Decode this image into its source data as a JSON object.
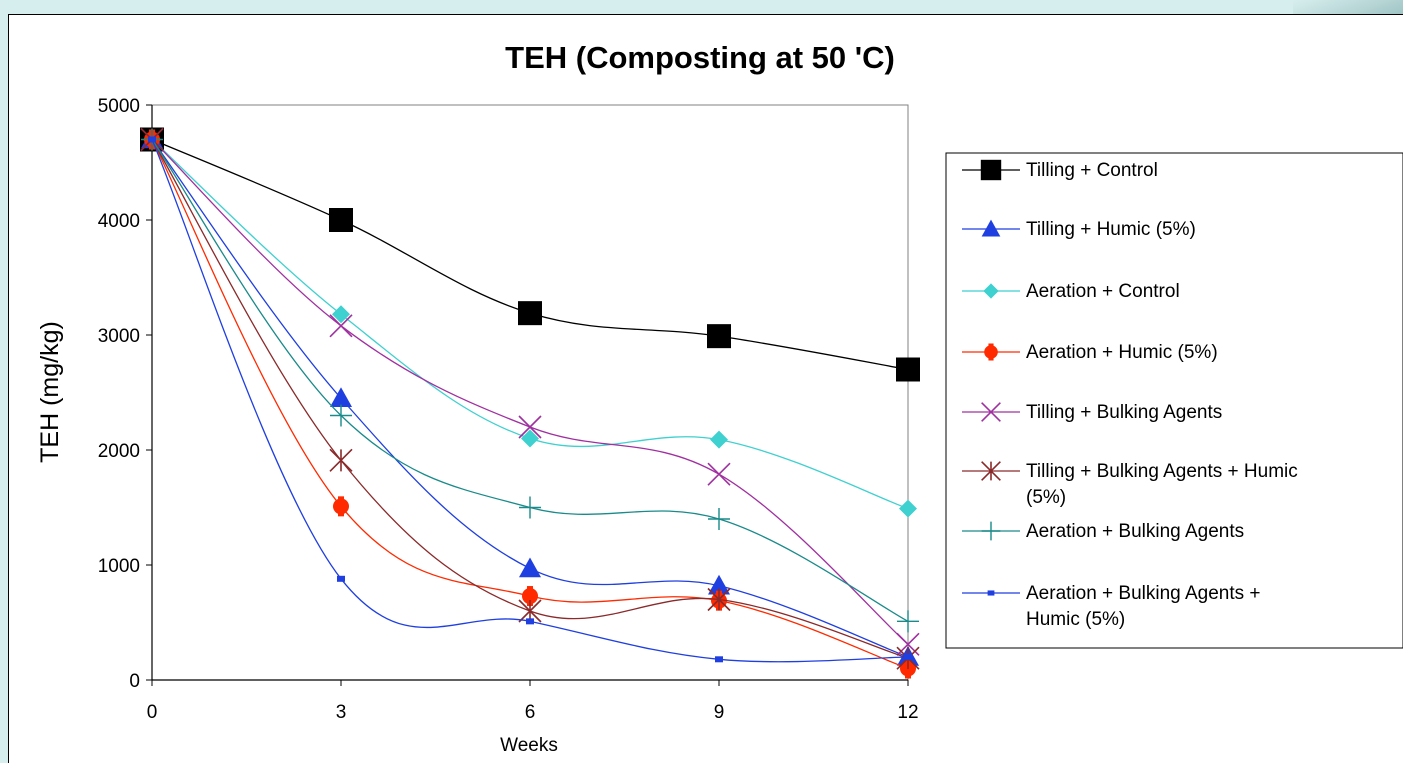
{
  "chart_data": {
    "type": "line",
    "title": "TEH (Composting at 50 'C)",
    "xlabel": "Weeks",
    "ylabel": "TEH (mg/kg)",
    "x": [
      0,
      3,
      6,
      9,
      12
    ],
    "xlim": [
      0,
      12
    ],
    "ylim": [
      0,
      5000
    ],
    "xticks": [
      "0",
      "3",
      "6",
      "9",
      "12"
    ],
    "yticks": [
      "0",
      "1000",
      "2000",
      "3000",
      "4000",
      "5000"
    ],
    "grid": false,
    "legend_position": "right",
    "series": [
      {
        "name": "Tilling + Control",
        "values": [
          4700,
          4000,
          3190,
          2990,
          2700
        ],
        "color": "#000000",
        "marker": "square-icon"
      },
      {
        "name": "Tilling + Humic (5%)",
        "values": [
          4700,
          2450,
          970,
          820,
          200
        ],
        "color": "#1f3fe0",
        "marker": "triangle-icon"
      },
      {
        "name": "Aeration + Control",
        "values": [
          4700,
          3180,
          2100,
          2090,
          1490
        ],
        "color": "#3fd0d0",
        "marker": "diamond-icon"
      },
      {
        "name": "Aeration + Humic (5%)",
        "values": [
          4700,
          1510,
          730,
          690,
          100
        ],
        "color": "#ff2a00",
        "marker": "circle-icon"
      },
      {
        "name": "Tilling + Bulking Agents",
        "values": [
          4700,
          3080,
          2200,
          1790,
          310
        ],
        "color": "#a030a0",
        "marker": "x-icon"
      },
      {
        "name": "Tilling + Bulking Agents + Humic (5%)",
        "values": [
          4700,
          1910,
          600,
          700,
          190
        ],
        "color": "#8a2a2a",
        "marker": "star-icon"
      },
      {
        "name": "Aeration + Bulking Agents",
        "values": [
          4700,
          2300,
          1500,
          1400,
          510
        ],
        "color": "#1a8a8a",
        "marker": "plus-icon"
      },
      {
        "name": "Aeration + Bulking Agents + Humic (5%)",
        "values": [
          4700,
          880,
          510,
          180,
          200
        ],
        "color": "#1f3fe0",
        "marker": "dash-icon"
      }
    ]
  },
  "legend": {
    "lines": [
      [
        "Tilling + Control"
      ],
      [
        "Tilling + Humic (5%)"
      ],
      [
        "Aeration + Control"
      ],
      [
        "Aeration + Humic (5%)"
      ],
      [
        "Tilling + Bulking Agents"
      ],
      [
        "Tilling + Bulking Agents + Humic",
        "(5%)"
      ],
      [
        "Aeration + Bulking Agents"
      ],
      [
        "Aeration + Bulking Agents +",
        "Humic (5%)"
      ]
    ]
  }
}
